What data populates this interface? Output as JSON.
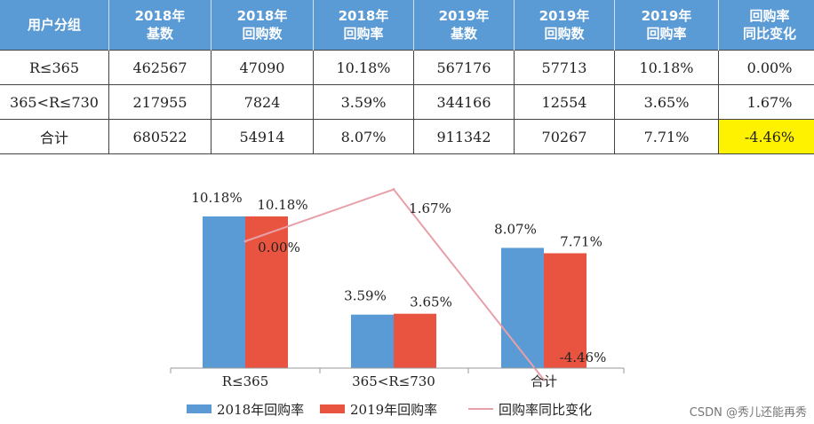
{
  "table": {
    "headers": [
      [
        "用户分组"
      ],
      [
        "2018年",
        "基数"
      ],
      [
        "2018年",
        "回购数"
      ],
      [
        "2018年",
        "回购率"
      ],
      [
        "2019年",
        "基数"
      ],
      [
        "2019年",
        "回购数"
      ],
      [
        "2019年",
        "回购率"
      ],
      [
        "回购率",
        "同比变化"
      ]
    ],
    "rows": [
      [
        "R≤365",
        "462567",
        "47090",
        "10.18%",
        "567176",
        "57713",
        "10.18%",
        "0.00%"
      ],
      [
        "365<R≤730",
        "217955",
        "7824",
        "3.59%",
        "344166",
        "12554",
        "3.65%",
        "1.67%"
      ],
      [
        "合计",
        "680522",
        "54914",
        "8.07%",
        "911342",
        "70267",
        "7.71%",
        "-4.46%"
      ]
    ],
    "highlight_color": "#fff200",
    "header_color": "#5b9bd5"
  },
  "chart_data": {
    "type": "bar",
    "categories": [
      "R≤365",
      "365<R≤730",
      "合计"
    ],
    "series": [
      {
        "name": "2018年回购率",
        "kind": "bar",
        "color": "#5b9bd5",
        "values": [
          10.18,
          3.59,
          8.07
        ],
        "labels": [
          "10.18%",
          "3.59%",
          "8.07%"
        ]
      },
      {
        "name": "2019年回购率",
        "kind": "bar",
        "color": "#e8543f",
        "values": [
          10.18,
          3.65,
          7.71
        ],
        "labels": [
          "10.18%",
          "3.65%",
          "7.71%"
        ]
      },
      {
        "name": "回购率同比变化",
        "kind": "line",
        "color": "#e8a0a8",
        "values": [
          0.0,
          1.67,
          -4.46
        ],
        "labels": [
          "0.00%",
          "1.67%",
          "-4.46%"
        ]
      }
    ],
    "bar_ylim": [
      0,
      14
    ],
    "line_ylim": [
      -5,
      2
    ],
    "legend_position": "bottom"
  },
  "watermark": "CSDN @秀儿还能再秀"
}
